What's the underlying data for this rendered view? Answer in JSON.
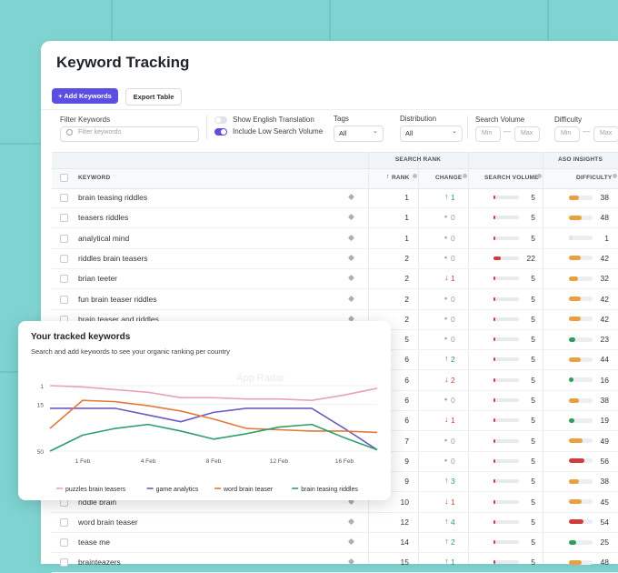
{
  "header": {
    "title": "Keyword Tracking",
    "buttons": [
      "+ Add Keywords",
      "Export Table"
    ]
  },
  "filters": {
    "keyword": {
      "label": "Filter Keywords",
      "placeholder": "Filter keywords"
    },
    "toggles": [
      {
        "label": "Show English Translation",
        "on": false
      },
      {
        "label": "Include Low Search Volume",
        "on": true
      }
    ],
    "tags": {
      "label": "Tags",
      "value": "All"
    },
    "distribution": {
      "label": "Distribution",
      "value": "All"
    },
    "search_volume": {
      "label": "Search Volume",
      "min": "Min",
      "max": "Max"
    },
    "difficulty": {
      "label": "Difficulty",
      "min": "Min",
      "max": "Max"
    }
  },
  "table": {
    "groups": [
      "SEARCH RANK",
      "ASO INSIGHTS"
    ],
    "columns": [
      "KEYWORD",
      "RANK",
      "CHANGE",
      "SEARCH VOLUME",
      "DIFFICULTY"
    ],
    "rows": [
      {
        "keyword": "brain teasing riddles",
        "rank": 1,
        "change": {
          "value": 1,
          "direction": "up"
        },
        "volume": 5,
        "difficulty": 38
      },
      {
        "keyword": "teasers riddles",
        "rank": 1,
        "change": {
          "value": 0,
          "direction": "none"
        },
        "volume": 5,
        "difficulty": 48
      },
      {
        "keyword": "analytical mind",
        "rank": 1,
        "change": {
          "value": 0,
          "direction": "none"
        },
        "volume": 5,
        "difficulty": 1
      },
      {
        "keyword": "riddles brain teasers",
        "rank": 2,
        "change": {
          "value": 0,
          "direction": "none"
        },
        "volume": 22,
        "difficulty": 42
      },
      {
        "keyword": "brian teeter",
        "rank": 2,
        "change": {
          "value": 1,
          "direction": "down"
        },
        "volume": 5,
        "difficulty": 32
      },
      {
        "keyword": "fun brain teaser riddles",
        "rank": 2,
        "change": {
          "value": 0,
          "direction": "none"
        },
        "volume": 5,
        "difficulty": 42
      },
      {
        "keyword": "brain teaser and riddles",
        "rank": 2,
        "change": {
          "value": 0,
          "direction": "none"
        },
        "volume": 5,
        "difficulty": 42
      },
      {
        "keyword": null,
        "rank": 5,
        "change": {
          "value": 0,
          "direction": "none"
        },
        "volume": 5,
        "difficulty": 23
      },
      {
        "keyword": null,
        "rank": 6,
        "change": {
          "value": 2,
          "direction": "up"
        },
        "volume": 5,
        "difficulty": 44
      },
      {
        "keyword": null,
        "rank": 6,
        "change": {
          "value": 2,
          "direction": "down"
        },
        "volume": 5,
        "difficulty": 16
      },
      {
        "keyword": null,
        "rank": 6,
        "change": {
          "value": 0,
          "direction": "none"
        },
        "volume": 5,
        "difficulty": 38
      },
      {
        "keyword": null,
        "rank": 6,
        "change": {
          "value": 1,
          "direction": "down"
        },
        "volume": 5,
        "difficulty": 19
      },
      {
        "keyword": null,
        "rank": 7,
        "change": {
          "value": 0,
          "direction": "none"
        },
        "volume": 5,
        "difficulty": 49
      },
      {
        "keyword": null,
        "rank": 9,
        "change": {
          "value": 0,
          "direction": "none"
        },
        "volume": 5,
        "difficulty": 56
      },
      {
        "keyword": null,
        "rank": 9,
        "change": {
          "value": 3,
          "direction": "up"
        },
        "volume": 5,
        "difficulty": 38
      },
      {
        "keyword": "riddle brain",
        "rank": 10,
        "change": {
          "value": 1,
          "direction": "down"
        },
        "volume": 5,
        "difficulty": 45
      },
      {
        "keyword": "word brain teaser",
        "rank": 12,
        "change": {
          "value": 4,
          "direction": "up"
        },
        "volume": 5,
        "difficulty": 54
      },
      {
        "keyword": "tease me",
        "rank": 14,
        "change": {
          "value": 2,
          "direction": "up"
        },
        "volume": 5,
        "difficulty": 25
      },
      {
        "keyword": "brainteazers",
        "rank": 15,
        "change": {
          "value": 1,
          "direction": "up"
        },
        "volume": 5,
        "difficulty": 48
      }
    ]
  },
  "watermark": "App Radar",
  "chart_data": {
    "type": "line",
    "title": "Your tracked keywords",
    "subtitle": "Search and add keywords to see your organic ranking per country",
    "categories": [
      null,
      "1 Feb",
      null,
      "4 Feb",
      null,
      "8 Feb",
      null,
      "12 Feb",
      null,
      "16 Feb",
      null
    ],
    "ylim": [
      50,
      1
    ],
    "yticks": [
      1,
      15,
      50
    ],
    "grid": true,
    "series": [
      {
        "name": "puzzles brain teasers",
        "color": "#e8a3b6",
        "values": [
          1,
          2,
          4,
          6,
          10,
          10,
          11,
          11,
          12,
          8,
          3
        ]
      },
      {
        "name": "game analytics",
        "color": "#6b5bc4",
        "values": [
          18,
          18,
          18,
          23,
          28,
          21,
          18,
          18,
          18,
          33,
          49
        ]
      },
      {
        "name": "word brain teaser",
        "color": "#e07b3c",
        "values": [
          33,
          12,
          13,
          16,
          20,
          26,
          33,
          34,
          35,
          35,
          36
        ]
      },
      {
        "name": "brain teasing riddles",
        "color": "#2e9e6a",
        "values": [
          50,
          38,
          33,
          30,
          35,
          41,
          37,
          32,
          30,
          40,
          49
        ]
      }
    ]
  }
}
